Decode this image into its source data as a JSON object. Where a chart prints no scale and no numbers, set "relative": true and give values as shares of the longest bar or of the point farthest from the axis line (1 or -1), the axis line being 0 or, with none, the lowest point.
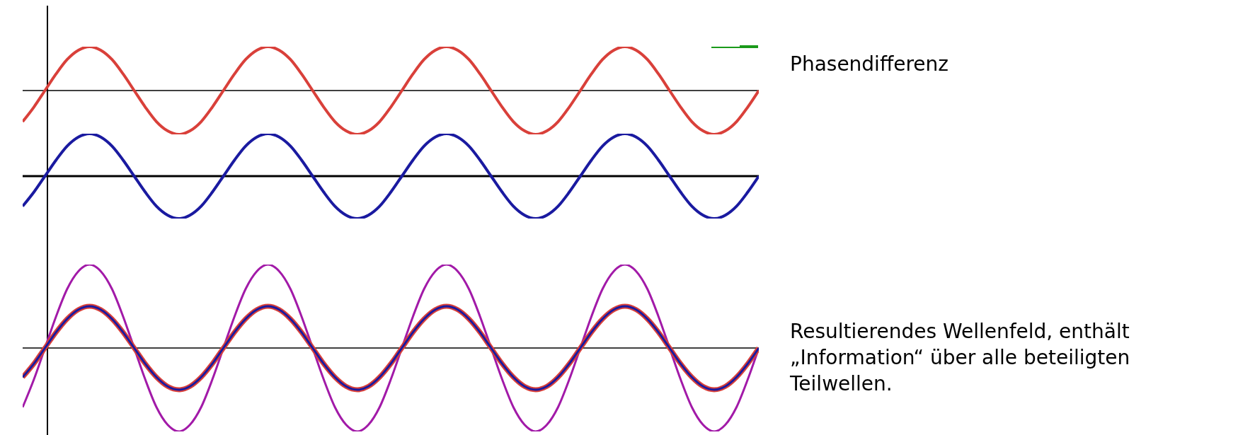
{
  "chart_data": [
    {
      "type": "line",
      "relative": true,
      "annotations": [
        "Phasendifferenz"
      ],
      "categories": [
        null,
        null,
        null,
        null,
        null,
        null,
        null,
        null,
        null,
        null,
        null,
        null,
        null,
        null,
        null,
        null,
        null,
        null,
        null,
        null,
        null,
        null,
        null,
        null,
        null,
        null,
        null,
        null,
        null,
        null,
        null,
        null,
        null,
        null,
        null,
        null,
        null,
        null,
        null,
        null,
        null,
        null,
        null,
        null,
        null,
        null,
        null,
        null,
        null,
        null,
        null,
        null,
        null,
        null,
        null,
        null,
        null,
        null,
        null,
        null,
        null,
        null,
        null,
        null,
        null,
        null,
        null
      ],
      "series": [
        {
          "color": "#d9403a",
          "values": [
            -0.71,
            -0.38,
            0,
            0.38,
            0.71,
            0.92,
            1,
            0.92,
            0.71,
            0.38,
            0,
            -0.38,
            -0.71,
            -0.92,
            -1,
            -0.92,
            -0.71,
            -0.38,
            0,
            0.38,
            0.71,
            0.92,
            1,
            0.92,
            0.71,
            0.38,
            0,
            -0.38,
            -0.71,
            -0.92,
            -1,
            -0.92,
            -0.71,
            -0.38,
            0,
            0.38,
            0.71,
            0.92,
            1,
            0.92,
            0.71,
            0.38,
            0,
            -0.38,
            -0.71,
            -0.92,
            -1,
            -0.92,
            -0.71,
            -0.38,
            0,
            0.38,
            0.71,
            0.92,
            1,
            0.92,
            0.71,
            0.38,
            0,
            -0.38,
            -0.71,
            -0.92,
            -1,
            -0.92,
            -0.71,
            -0.38,
            0
          ]
        }
      ]
    },
    {
      "type": "line",
      "relative": true,
      "categories": [
        null,
        null,
        null,
        null,
        null,
        null,
        null,
        null,
        null,
        null,
        null,
        null,
        null,
        null,
        null,
        null,
        null,
        null,
        null,
        null,
        null,
        null,
        null,
        null,
        null,
        null,
        null,
        null,
        null,
        null,
        null,
        null,
        null,
        null,
        null,
        null,
        null,
        null,
        null,
        null,
        null,
        null,
        null,
        null,
        null,
        null,
        null,
        null,
        null,
        null,
        null,
        null,
        null,
        null,
        null,
        null,
        null,
        null,
        null,
        null,
        null,
        null,
        null,
        null,
        null,
        null,
        null
      ],
      "series": [
        {
          "color": "#1a1aa0",
          "values": [
            -0.71,
            -0.38,
            0,
            0.38,
            0.71,
            0.92,
            1,
            0.92,
            0.71,
            0.38,
            0,
            -0.38,
            -0.71,
            -0.92,
            -1,
            -0.92,
            -0.71,
            -0.38,
            0,
            0.38,
            0.71,
            0.92,
            1,
            0.92,
            0.71,
            0.38,
            0,
            -0.38,
            -0.71,
            -0.92,
            -1,
            -0.92,
            -0.71,
            -0.38,
            0,
            0.38,
            0.71,
            0.92,
            1,
            0.92,
            0.71,
            0.38,
            0,
            -0.38,
            -0.71,
            -0.92,
            -1,
            -0.92,
            -0.71,
            -0.38,
            0,
            0.38,
            0.71,
            0.92,
            1,
            0.92,
            0.71,
            0.38,
            0,
            -0.38,
            -0.71,
            -0.92,
            -1,
            -0.92,
            -0.71,
            -0.38,
            0
          ]
        }
      ]
    },
    {
      "type": "line",
      "relative": true,
      "annotations": [
        "Resultierendes Wellenfeld, enthält „Information“ über alle beteiligten Teilwellen."
      ],
      "categories": [
        null,
        null,
        null,
        null,
        null,
        null,
        null,
        null,
        null,
        null,
        null,
        null,
        null,
        null,
        null,
        null,
        null,
        null,
        null,
        null,
        null,
        null,
        null,
        null,
        null,
        null,
        null,
        null,
        null,
        null,
        null,
        null,
        null,
        null,
        null,
        null,
        null,
        null,
        null,
        null,
        null,
        null,
        null,
        null,
        null,
        null,
        null,
        null,
        null,
        null,
        null,
        null,
        null,
        null,
        null,
        null,
        null,
        null,
        null,
        null,
        null,
        null,
        null,
        null,
        null,
        null,
        null
      ],
      "series": [
        {
          "color": "#a21aa8",
          "values": [
            -0.71,
            -0.38,
            0,
            0.38,
            0.71,
            0.92,
            1,
            0.92,
            0.71,
            0.38,
            0,
            -0.38,
            -0.71,
            -0.92,
            -1,
            -0.92,
            -0.71,
            -0.38,
            0,
            0.38,
            0.71,
            0.92,
            1,
            0.92,
            0.71,
            0.38,
            0,
            -0.38,
            -0.71,
            -0.92,
            -1,
            -0.92,
            -0.71,
            -0.38,
            0,
            0.38,
            0.71,
            0.92,
            1,
            0.92,
            0.71,
            0.38,
            0,
            -0.38,
            -0.71,
            -0.92,
            -1,
            -0.92,
            -0.71,
            -0.38,
            0,
            0.38,
            0.71,
            0.92,
            1,
            0.92,
            0.71,
            0.38,
            0,
            -0.38,
            -0.71,
            -0.92,
            -1,
            -0.92,
            -0.71,
            -0.38,
            0
          ]
        },
        {
          "color": "#d9403a",
          "values": [
            -0.35,
            -0.19,
            0,
            0.19,
            0.35,
            0.46,
            0.5,
            0.46,
            0.35,
            0.19,
            0,
            -0.19,
            -0.35,
            -0.46,
            -0.5,
            -0.46,
            -0.35,
            -0.19,
            0,
            0.19,
            0.35,
            0.46,
            0.5,
            0.46,
            0.35,
            0.19,
            0,
            -0.19,
            -0.35,
            -0.46,
            -0.5,
            -0.46,
            -0.35,
            -0.19,
            0,
            0.19,
            0.35,
            0.46,
            0.5,
            0.46,
            0.35,
            0.19,
            0,
            -0.19,
            -0.35,
            -0.46,
            -0.5,
            -0.46,
            -0.35,
            -0.19,
            0,
            0.19,
            0.35,
            0.46,
            0.5,
            0.46,
            0.35,
            0.19,
            0,
            -0.19,
            -0.35,
            -0.46,
            -0.5,
            -0.46,
            -0.35,
            -0.19,
            0
          ]
        },
        {
          "color": "#1a1aa0",
          "values": [
            -0.35,
            -0.19,
            0,
            0.19,
            0.35,
            0.46,
            0.5,
            0.46,
            0.35,
            0.19,
            0,
            -0.19,
            -0.35,
            -0.46,
            -0.5,
            -0.46,
            -0.35,
            -0.19,
            0,
            0.19,
            0.35,
            0.46,
            0.5,
            0.46,
            0.35,
            0.19,
            0,
            -0.19,
            -0.35,
            -0.46,
            -0.5,
            -0.46,
            -0.35,
            -0.19,
            0,
            0.19,
            0.35,
            0.46,
            0.5,
            0.46,
            0.35,
            0.19,
            0,
            -0.19,
            -0.35,
            -0.46,
            -0.5,
            -0.46,
            -0.35,
            -0.19,
            0,
            0.19,
            0.35,
            0.46,
            0.5,
            0.46,
            0.35,
            0.19,
            0,
            -0.19,
            -0.35,
            -0.46,
            -0.5,
            -0.46,
            -0.35,
            -0.19,
            0
          ]
        }
      ]
    }
  ]
}
